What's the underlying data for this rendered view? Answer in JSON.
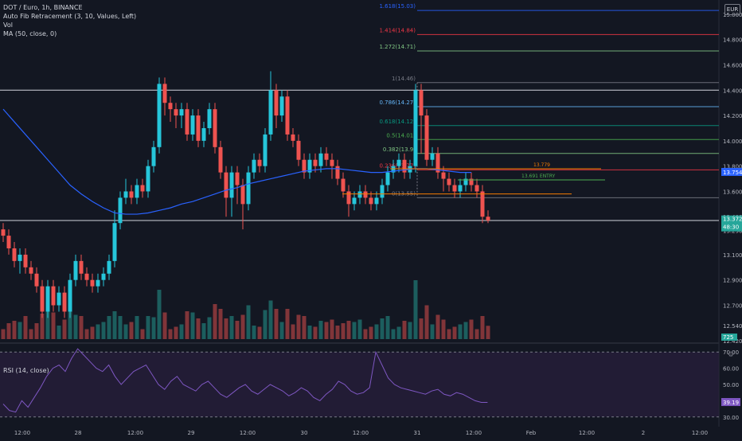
{
  "header": {
    "symbol_line": "DOT / Euro, 1h, BINANCE",
    "indicator_fib": "Auto Fib Retracement (3, 10, Values, Left)",
    "indicator_vol": "Vol",
    "indicator_ma": "MA (50, close, 0)",
    "currency_badge": "EUR"
  },
  "rsi": {
    "label": "RSI (14, close)",
    "current_label": "39.19",
    "ticks": [
      "70.00",
      "60.00",
      "50.00",
      "40.00",
      "30.00"
    ],
    "tick_values": [
      70,
      60,
      50,
      40,
      30
    ]
  },
  "price_axis": {
    "ticks": [
      "15.000",
      "14.800",
      "14.600",
      "14.400",
      "14.200",
      "14.000",
      "13.800",
      "13.600",
      "13.400",
      "13.290",
      "13.100",
      "12.900",
      "12.700",
      "12.540",
      "12.420"
    ],
    "tick_values": [
      15.0,
      14.8,
      14.6,
      14.4,
      14.2,
      14.0,
      13.8,
      13.6,
      13.4,
      13.29,
      13.1,
      12.9,
      12.7,
      12.54,
      12.42
    ],
    "ma_label": "13.754",
    "price_label": "13.372",
    "countdown_label": "48:30",
    "vol_label": "725"
  },
  "time_axis": {
    "labels": [
      "12:00",
      "28",
      "12:00",
      "29",
      "12:00",
      "30",
      "12:00",
      "31",
      "12:00",
      "Feb",
      "12:00",
      "2",
      "12:00"
    ]
  },
  "fib_levels": [
    {
      "label": "1.618(15.03)",
      "value": 15.03,
      "color": "#2962ff"
    },
    {
      "label": "1.414(14.84)",
      "value": 14.84,
      "color": "#f23645"
    },
    {
      "label": "1.272(14.71)",
      "value": 14.71,
      "color": "#81c784"
    },
    {
      "label": "1(14.46)",
      "value": 14.46,
      "color": "#787b86"
    },
    {
      "label": "0.786(14.27)",
      "value": 14.27,
      "color": "#64b5f6"
    },
    {
      "label": "0.618(14.12)",
      "value": 14.12,
      "color": "#089981"
    },
    {
      "label": "0.5(14.01)",
      "value": 14.01,
      "color": "#4caf50"
    },
    {
      "label": "0.382(13.9)",
      "value": 13.9,
      "color": "#81c784"
    },
    {
      "label": "0.236(13.77)",
      "value": 13.77,
      "color": "#f23645"
    },
    {
      "label": "0(13.55)",
      "value": 13.55,
      "color": "#787b86"
    }
  ],
  "annotations": {
    "upper_price": "13.779",
    "entry": "13.691 ENTRY"
  },
  "chart_data": {
    "type": "candlestick",
    "symbol": "DOT / Euro, 1h, BINANCE",
    "ylim": [
      12.42,
      15.05
    ],
    "horizontal_lines": [
      14.4,
      13.37
    ],
    "candles": [
      [
        13.3,
        13.25,
        13.35,
        13.2
      ],
      [
        13.25,
        13.15,
        13.3,
        13.1
      ],
      [
        13.15,
        13.05,
        13.2,
        13.0
      ],
      [
        13.05,
        13.1,
        13.15,
        12.95
      ],
      [
        13.1,
        13.0,
        13.15,
        12.95
      ],
      [
        13.0,
        12.95,
        13.05,
        12.9
      ],
      [
        12.95,
        12.85,
        13.0,
        12.8
      ],
      [
        12.85,
        12.65,
        12.9,
        12.6
      ],
      [
        12.65,
        12.85,
        12.9,
        12.6
      ],
      [
        12.85,
        12.7,
        12.9,
        12.65
      ],
      [
        12.7,
        12.8,
        12.85,
        12.65
      ],
      [
        12.8,
        12.65,
        12.85,
        12.6
      ],
      [
        12.65,
        12.9,
        12.95,
        12.6
      ],
      [
        12.9,
        13.05,
        13.1,
        12.85
      ],
      [
        13.05,
        12.95,
        13.1,
        12.9
      ],
      [
        12.95,
        12.9,
        13.0,
        12.85
      ],
      [
        12.9,
        12.85,
        12.95,
        12.8
      ],
      [
        12.85,
        12.9,
        12.95,
        12.8
      ],
      [
        12.9,
        12.95,
        13.0,
        12.85
      ],
      [
        12.95,
        13.05,
        13.1,
        12.9
      ],
      [
        13.05,
        13.35,
        13.45,
        13.0
      ],
      [
        13.35,
        13.55,
        13.6,
        13.3
      ],
      [
        13.55,
        13.6,
        13.7,
        13.5
      ],
      [
        13.6,
        13.55,
        13.65,
        13.5
      ],
      [
        13.55,
        13.65,
        13.7,
        13.5
      ],
      [
        13.65,
        13.6,
        13.7,
        13.55
      ],
      [
        13.6,
        13.8,
        13.85,
        13.55
      ],
      [
        13.8,
        13.95,
        14.0,
        13.75
      ],
      [
        13.95,
        14.45,
        14.5,
        13.9
      ],
      [
        14.45,
        14.3,
        14.5,
        14.2
      ],
      [
        14.3,
        14.25,
        14.35,
        14.15
      ],
      [
        14.25,
        14.2,
        14.3,
        14.1
      ],
      [
        14.2,
        14.25,
        14.3,
        14.1
      ],
      [
        14.25,
        14.05,
        14.3,
        14.0
      ],
      [
        14.05,
        14.2,
        14.25,
        14.0
      ],
      [
        14.2,
        14.0,
        14.25,
        13.95
      ],
      [
        14.0,
        14.1,
        14.15,
        13.95
      ],
      [
        14.1,
        14.25,
        14.3,
        14.05
      ],
      [
        14.25,
        13.95,
        14.3,
        13.9
      ],
      [
        13.95,
        13.75,
        14.0,
        13.7
      ],
      [
        13.75,
        13.55,
        13.8,
        13.4
      ],
      [
        13.55,
        13.75,
        13.8,
        13.4
      ],
      [
        13.75,
        13.65,
        13.8,
        13.5
      ],
      [
        13.65,
        13.5,
        13.7,
        13.3
      ],
      [
        13.5,
        13.75,
        13.8,
        13.45
      ],
      [
        13.75,
        13.85,
        13.9,
        13.7
      ],
      [
        13.85,
        13.8,
        13.9,
        13.75
      ],
      [
        13.8,
        14.05,
        14.1,
        13.75
      ],
      [
        14.05,
        14.4,
        14.55,
        14.0
      ],
      [
        14.4,
        14.2,
        14.45,
        14.1
      ],
      [
        14.2,
        14.35,
        14.4,
        14.15
      ],
      [
        14.35,
        14.05,
        14.4,
        14.0
      ],
      [
        14.05,
        14.0,
        14.1,
        13.95
      ],
      [
        14.0,
        13.85,
        14.05,
        13.8
      ],
      [
        13.85,
        13.75,
        13.9,
        13.7
      ],
      [
        13.75,
        13.85,
        13.9,
        13.7
      ],
      [
        13.85,
        13.8,
        13.9,
        13.75
      ],
      [
        13.8,
        13.9,
        13.95,
        13.75
      ],
      [
        13.9,
        13.85,
        13.95,
        13.8
      ],
      [
        13.85,
        13.8,
        13.9,
        13.7
      ],
      [
        13.8,
        13.7,
        13.85,
        13.65
      ],
      [
        13.7,
        13.6,
        13.75,
        13.55
      ],
      [
        13.6,
        13.5,
        13.65,
        13.4
      ],
      [
        13.5,
        13.55,
        13.6,
        13.45
      ],
      [
        13.55,
        13.6,
        13.65,
        13.5
      ],
      [
        13.6,
        13.55,
        13.65,
        13.5
      ],
      [
        13.55,
        13.5,
        13.6,
        13.45
      ],
      [
        13.5,
        13.55,
        13.6,
        13.45
      ],
      [
        13.55,
        13.65,
        13.7,
        13.5
      ],
      [
        13.65,
        13.75,
        13.8,
        13.6
      ],
      [
        13.75,
        13.8,
        13.85,
        13.7
      ],
      [
        13.8,
        13.85,
        13.9,
        13.75
      ],
      [
        13.85,
        13.75,
        13.9,
        13.7
      ],
      [
        13.75,
        13.8,
        13.85,
        13.7
      ],
      [
        13.8,
        14.4,
        14.45,
        13.75
      ],
      [
        14.4,
        14.2,
        14.45,
        13.9
      ],
      [
        14.2,
        13.85,
        14.25,
        13.8
      ],
      [
        13.85,
        13.9,
        13.95,
        13.8
      ],
      [
        13.9,
        13.75,
        13.95,
        13.7
      ],
      [
        13.75,
        13.7,
        13.8,
        13.6
      ],
      [
        13.7,
        13.65,
        13.75,
        13.6
      ],
      [
        13.65,
        13.6,
        13.7,
        13.55
      ],
      [
        13.6,
        13.65,
        13.7,
        13.55
      ],
      [
        13.65,
        13.7,
        13.75,
        13.6
      ],
      [
        13.7,
        13.65,
        13.75,
        13.6
      ],
      [
        13.65,
        13.6,
        13.7,
        13.55
      ],
      [
        13.6,
        13.4,
        13.65,
        13.35
      ],
      [
        13.4,
        13.37,
        13.45,
        13.35
      ]
    ],
    "volume_color_note": "volume bars tinted by candle direction",
    "ma50": [
      14.25,
      14.15,
      14.05,
      13.95,
      13.85,
      13.75,
      13.65,
      13.58,
      13.52,
      13.47,
      13.43,
      13.42,
      13.42,
      13.43,
      13.45,
      13.47,
      13.5,
      13.52,
      13.55,
      13.58,
      13.61,
      13.63,
      13.66,
      13.68,
      13.7,
      13.72,
      13.74,
      13.76,
      13.77,
      13.78,
      13.78,
      13.77,
      13.76,
      13.75,
      13.75,
      13.76,
      13.77,
      13.78,
      13.78,
      13.77,
      13.76,
      13.75,
      13.75
    ],
    "rsi": [
      38,
      34,
      33,
      40,
      36,
      42,
      48,
      55,
      60,
      62,
      58,
      66,
      72,
      68,
      64,
      60,
      58,
      62,
      55,
      50,
      54,
      58,
      60,
      62,
      56,
      50,
      47,
      52,
      55,
      50,
      48,
      46,
      50,
      52,
      48,
      44,
      42,
      45,
      48,
      50,
      46,
      44,
      47,
      50,
      48,
      46,
      43,
      45,
      48,
      46,
      42,
      40,
      44,
      47,
      52,
      50,
      46,
      44,
      45,
      48,
      70,
      62,
      54,
      50,
      48,
      47,
      46,
      45,
      44,
      46,
      47,
      44,
      43,
      45,
      44,
      42,
      40,
      39,
      39
    ]
  }
}
